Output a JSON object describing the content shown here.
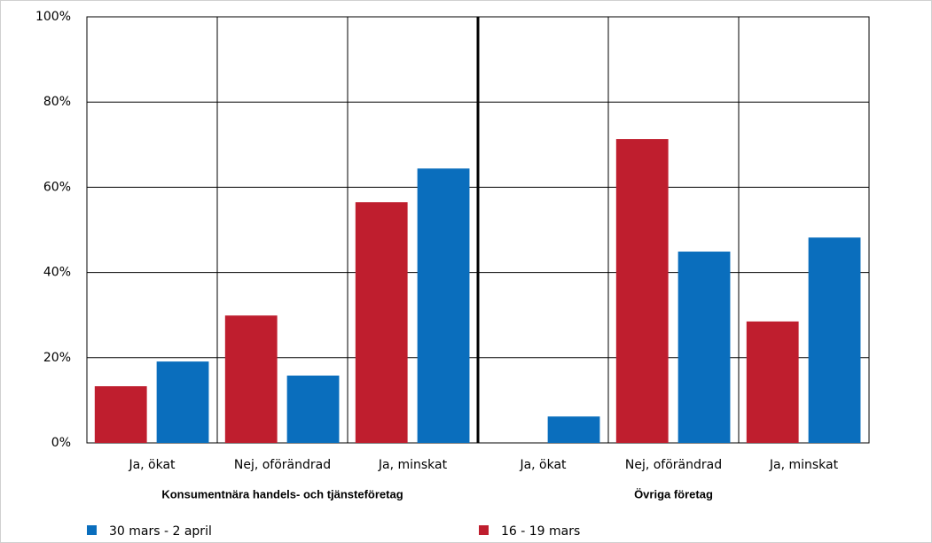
{
  "chart_data": {
    "type": "bar",
    "categories": [
      "Ja, ökat",
      "Nej, oförändrad",
      "Ja, minskat",
      "Ja, ökat",
      "Nej, oförändrad",
      "Ja, minskat"
    ],
    "groups": [
      "Konsumentnära handels- och tjänsteföretag",
      "Övriga företag"
    ],
    "series": [
      {
        "name": "30 mars - 2 april",
        "color": "#0a6ebd",
        "values": [
          19.1,
          15.8,
          64.4,
          6.2,
          44.9,
          48.2
        ]
      },
      {
        "name": "16 - 19 mars",
        "color": "#bf1e2e",
        "values": [
          13.3,
          29.9,
          56.5,
          0,
          71.3,
          28.5
        ]
      }
    ],
    "ylim": [
      0,
      100
    ],
    "yticks": [
      {
        "value": 0,
        "label": "0%"
      },
      {
        "value": 20,
        "label": "20%"
      },
      {
        "value": 40,
        "label": "40%"
      },
      {
        "value": 60,
        "label": "60%"
      },
      {
        "value": 80,
        "label": "80%"
      },
      {
        "value": 100,
        "label": "100%"
      }
    ],
    "grid": true
  }
}
